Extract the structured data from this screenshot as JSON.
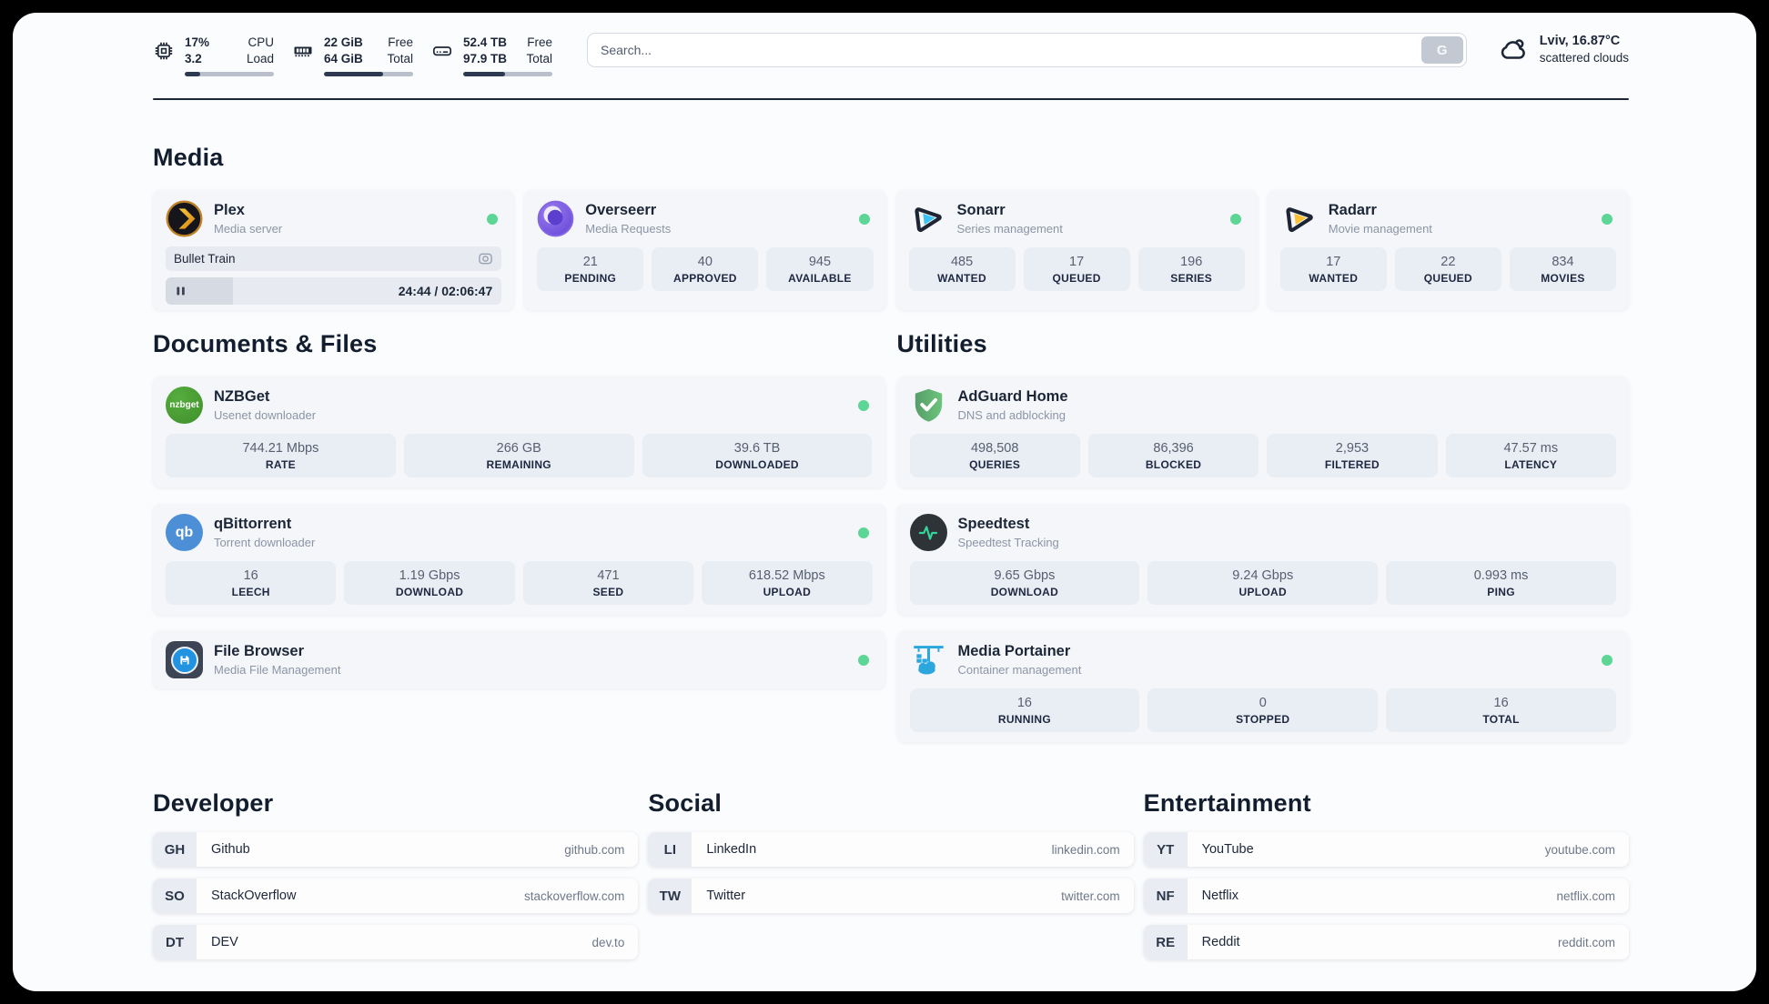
{
  "colors": {
    "status_green": "#5bd694",
    "navy": "#1d2738",
    "accent_fill": "#2c3950"
  },
  "header": {
    "cpu": {
      "value1": "17%",
      "value2": "3.2",
      "label1": "CPU",
      "label2": "Load",
      "progress": 17
    },
    "ram": {
      "value1": "22 GiB",
      "value2": "64 GiB",
      "label1": "Free",
      "label2": "Total",
      "progress": 66
    },
    "disk": {
      "value1": "52.4 TB",
      "value2": "97.9 TB",
      "label1": "Free",
      "label2": "Total",
      "progress": 47
    },
    "search": {
      "placeholder": "Search...",
      "button_label": "G"
    },
    "weather": {
      "location": "Lviv, 16.87°C",
      "condition": "scattered clouds"
    }
  },
  "media": {
    "title": "Media",
    "plex": {
      "name": "Plex",
      "desc": "Media server",
      "now_playing": "Bullet Train",
      "time": "24:44 / 02:06:47",
      "progress": 20
    },
    "overseerr": {
      "name": "Overseerr",
      "desc": "Media Requests",
      "stats": [
        {
          "value": "21",
          "label": "PENDING"
        },
        {
          "value": "40",
          "label": "APPROVED"
        },
        {
          "value": "945",
          "label": "AVAILABLE"
        }
      ]
    },
    "sonarr": {
      "name": "Sonarr",
      "desc": "Series management",
      "stats": [
        {
          "value": "485",
          "label": "WANTED"
        },
        {
          "value": "17",
          "label": "QUEUED"
        },
        {
          "value": "196",
          "label": "SERIES"
        }
      ]
    },
    "radarr": {
      "name": "Radarr",
      "desc": "Movie management",
      "stats": [
        {
          "value": "17",
          "label": "WANTED"
        },
        {
          "value": "22",
          "label": "QUEUED"
        },
        {
          "value": "834",
          "label": "MOVIES"
        }
      ]
    }
  },
  "documents": {
    "title": "Documents & Files",
    "nzbget": {
      "name": "NZBGet",
      "desc": "Usenet downloader",
      "icon_text": "nzbget",
      "stats": [
        {
          "value": "744.21 Mbps",
          "label": "RATE"
        },
        {
          "value": "266 GB",
          "label": "REMAINING"
        },
        {
          "value": "39.6 TB",
          "label": "DOWNLOADED"
        }
      ]
    },
    "qbittorrent": {
      "name": "qBittorrent",
      "desc": "Torrent downloader",
      "icon_text": "qb",
      "stats": [
        {
          "value": "16",
          "label": "LEECH"
        },
        {
          "value": "1.19 Gbps",
          "label": "DOWNLOAD"
        },
        {
          "value": "471",
          "label": "SEED"
        },
        {
          "value": "618.52 Mbps",
          "label": "UPLOAD"
        }
      ]
    },
    "filebrowser": {
      "name": "File Browser",
      "desc": "Media File Management"
    }
  },
  "utilities": {
    "title": "Utilities",
    "adguard": {
      "name": "AdGuard Home",
      "desc": "DNS and adblocking",
      "stats": [
        {
          "value": "498,508",
          "label": "QUERIES"
        },
        {
          "value": "86,396",
          "label": "BLOCKED"
        },
        {
          "value": "2,953",
          "label": "FILTERED"
        },
        {
          "value": "47.57 ms",
          "label": "LATENCY"
        }
      ]
    },
    "speedtest": {
      "name": "Speedtest",
      "desc": "Speedtest Tracking",
      "stats": [
        {
          "value": "9.65 Gbps",
          "label": "DOWNLOAD"
        },
        {
          "value": "9.24 Gbps",
          "label": "UPLOAD"
        },
        {
          "value": "0.993 ms",
          "label": "PING"
        }
      ]
    },
    "portainer": {
      "name": "Media Portainer",
      "desc": "Container management",
      "stats": [
        {
          "value": "16",
          "label": "RUNNING"
        },
        {
          "value": "0",
          "label": "STOPPED"
        },
        {
          "value": "16",
          "label": "TOTAL"
        }
      ]
    }
  },
  "bookmarks": {
    "developer": {
      "title": "Developer",
      "items": [
        {
          "abbr": "GH",
          "name": "Github",
          "url": "github.com"
        },
        {
          "abbr": "SO",
          "name": "StackOverflow",
          "url": "stackoverflow.com"
        },
        {
          "abbr": "DT",
          "name": "DEV",
          "url": "dev.to"
        }
      ]
    },
    "social": {
      "title": "Social",
      "items": [
        {
          "abbr": "LI",
          "name": "LinkedIn",
          "url": "linkedin.com"
        },
        {
          "abbr": "TW",
          "name": "Twitter",
          "url": "twitter.com"
        }
      ]
    },
    "entertainment": {
      "title": "Entertainment",
      "items": [
        {
          "abbr": "YT",
          "name": "YouTube",
          "url": "youtube.com"
        },
        {
          "abbr": "NF",
          "name": "Netflix",
          "url": "netflix.com"
        },
        {
          "abbr": "RE",
          "name": "Reddit",
          "url": "reddit.com"
        }
      ]
    }
  }
}
